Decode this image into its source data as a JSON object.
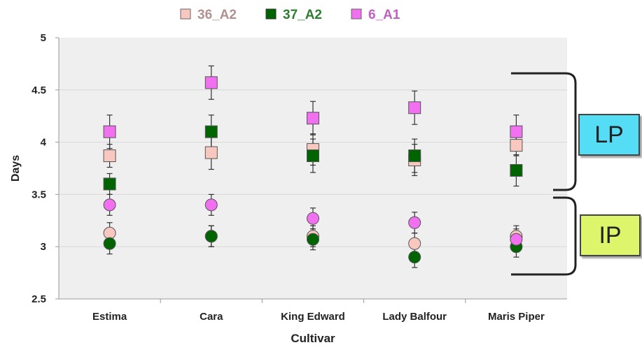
{
  "chart_data": {
    "type": "scatter",
    "title": "",
    "xlabel": "Cultivar",
    "ylabel": "Days",
    "categories": [
      "Estima",
      "Cara",
      "King Edward",
      "Lady Balfour",
      "Maris Piper"
    ],
    "ylim": [
      2.5,
      5
    ],
    "yticks": [
      "2.5",
      "3",
      "3.5",
      "4",
      "4.5",
      "5"
    ],
    "grid": true,
    "legend_position": "top",
    "legend": [
      {
        "name": "36_A2",
        "color": "#f8c8c0",
        "text_color": "#b09090"
      },
      {
        "name": "37_A2",
        "color": "#006400",
        "text_color": "#2e7d2e"
      },
      {
        "name": "6_A1",
        "color": "#f070f0",
        "text_color": "#c060c0"
      }
    ],
    "series": [
      {
        "name": "36_A2",
        "stage": "LP",
        "marker": "square",
        "color": "#f8c8c0",
        "values": [
          3.87,
          3.9,
          3.93,
          3.83,
          3.97
        ],
        "errors": [
          0.11,
          0.16,
          0.15,
          0.15,
          0.1
        ]
      },
      {
        "name": "37_A2",
        "stage": "LP",
        "marker": "square",
        "color": "#006400",
        "values": [
          3.6,
          4.1,
          3.87,
          3.87,
          3.73
        ],
        "errors": [
          0.1,
          0.16,
          0.16,
          0.16,
          0.15
        ]
      },
      {
        "name": "6_A1",
        "stage": "LP",
        "marker": "square",
        "color": "#f070f0",
        "values": [
          4.1,
          4.57,
          4.23,
          4.33,
          4.1
        ],
        "errors": [
          0.16,
          0.16,
          0.16,
          0.16,
          0.16
        ]
      },
      {
        "name": "36_A2",
        "stage": "IP",
        "marker": "circle",
        "color": "#f8c8c0",
        "values": [
          3.13,
          3.1,
          3.1,
          3.03,
          3.1
        ],
        "errors": [
          0.1,
          0.1,
          0.1,
          0.1,
          0.1
        ]
      },
      {
        "name": "37_A2",
        "stage": "IP",
        "marker": "circle",
        "color": "#006400",
        "values": [
          3.03,
          3.1,
          3.07,
          2.9,
          3.0
        ],
        "errors": [
          0.1,
          0.1,
          0.1,
          0.1,
          0.1
        ]
      },
      {
        "name": "6_A1",
        "stage": "IP",
        "marker": "circle",
        "color": "#f070f0",
        "values": [
          3.4,
          3.4,
          3.27,
          3.23,
          3.07
        ],
        "errors": [
          0.1,
          0.1,
          0.1,
          0.1,
          0.1
        ]
      }
    ],
    "annotations": [
      {
        "label": "LP",
        "color": "#55ddf5"
      },
      {
        "label": "IP",
        "color": "#ddf56a"
      }
    ]
  }
}
